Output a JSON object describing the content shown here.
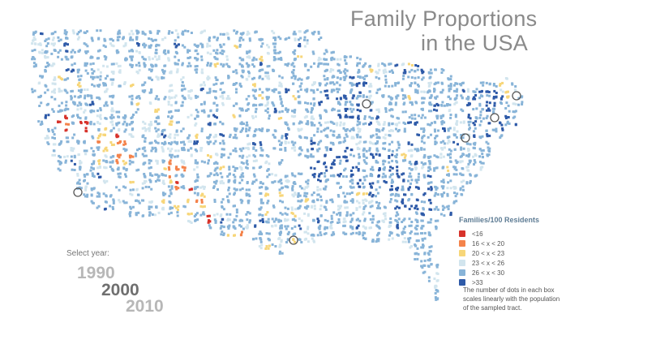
{
  "title": {
    "line1": "Family Proportions",
    "line2": "in the USA"
  },
  "year_selector": {
    "label": "Select year:",
    "years": [
      "1990",
      "2000",
      "2010"
    ],
    "selected": "2000"
  },
  "legend": {
    "title": "Families/100 Residents",
    "items": [
      {
        "label": "<16",
        "color": "#d7332b"
      },
      {
        "label": "16 < x < 20",
        "color": "#f4834b"
      },
      {
        "label": "20 < x < 23",
        "color": "#f7d679"
      },
      {
        "label": "23 < x < 26",
        "color": "#d2e5ee"
      },
      {
        "label": "26 < x < 30",
        "color": "#88b4d8"
      },
      {
        "label": ">33",
        "color": "#2e5aa8"
      }
    ],
    "note": "The number of dots in each box scales linearly with the population of the sampled tract."
  },
  "colors": {
    "title": "#8a8a8a",
    "legend_title": "#5f7d95",
    "year_selected": "#6f6f6f",
    "year_unselected": "#b7b7b7"
  }
}
